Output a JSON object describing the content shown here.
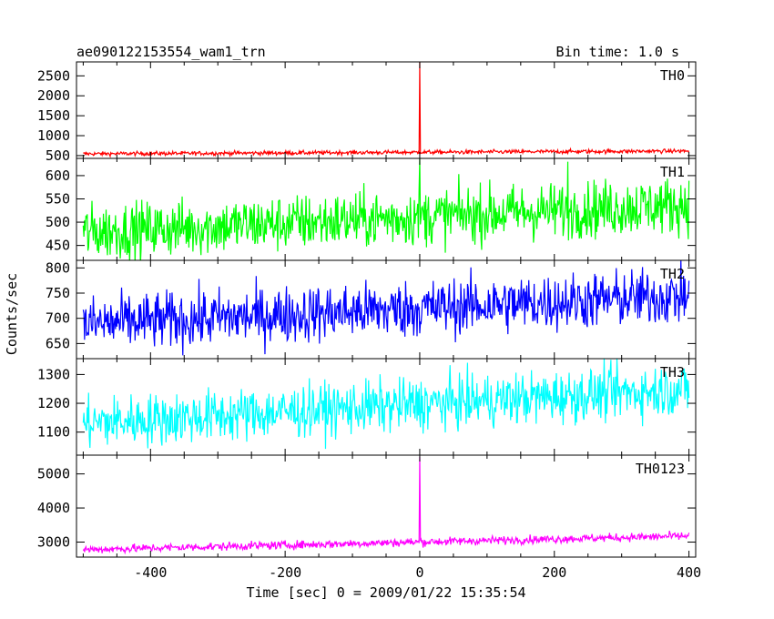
{
  "chart_data": {
    "type": "line",
    "title": "ae090122153554_wam1_trn",
    "subtitle": "Bin time: 1.0 s",
    "xlabel": "Time [sec] 0 = 2009/01/22 15:35:54",
    "ylabel": "Counts/sec",
    "xlim": [
      -510,
      410
    ],
    "x_ticks": [
      -400,
      -200,
      0,
      200,
      400
    ],
    "x_range": [
      -500,
      400
    ],
    "bin_time": 1.0,
    "grid": false,
    "panels": [
      {
        "name": "TH0",
        "color": "#ff0000",
        "ylim": [
          430,
          2850
        ],
        "y_ticks": [
          500,
          1000,
          1500,
          2000,
          2500
        ],
        "level_start": 545,
        "level_end": 615,
        "noise": 25,
        "spikes": [
          {
            "x": 0,
            "y": 2850
          }
        ]
      },
      {
        "name": "TH1",
        "color": "#00ff00",
        "ylim": [
          418,
          637
        ],
        "y_ticks": [
          450,
          500,
          550,
          600
        ],
        "level_start": 478,
        "level_end": 538,
        "noise": 30,
        "spikes": [
          {
            "x": 0,
            "y": 637
          },
          {
            "x": 220,
            "y": 630
          }
        ]
      },
      {
        "name": "TH2",
        "color": "#0000ff",
        "ylim": [
          620,
          815
        ],
        "y_ticks": [
          650,
          700,
          750,
          800
        ],
        "level_start": 688,
        "level_end": 745,
        "noise": 28,
        "spikes": []
      },
      {
        "name": "TH3",
        "color": "#00ffff",
        "ylim": [
          1020,
          1355
        ],
        "y_ticks": [
          1100,
          1200,
          1300
        ],
        "level_start": 1130,
        "level_end": 1250,
        "noise": 45,
        "spikes": []
      },
      {
        "name": "TH0123",
        "color": "#ff00ff",
        "ylim": [
          2560,
          5550
        ],
        "y_ticks": [
          3000,
          4000,
          5000
        ],
        "level_start": 2780,
        "level_end": 3180,
        "noise": 60,
        "spikes": [
          {
            "x": 0,
            "y": 5500
          }
        ]
      }
    ]
  }
}
